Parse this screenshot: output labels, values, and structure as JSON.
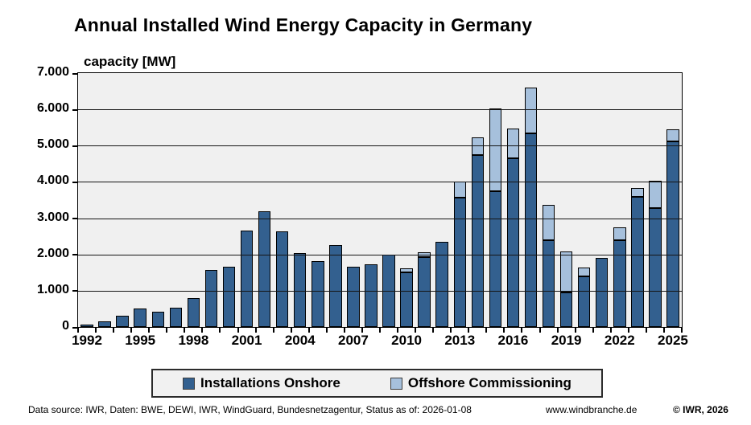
{
  "title": "Annual Installed Wind Energy Capacity in Germany",
  "axis_title": "capacity [MW]",
  "colors": {
    "onshore": "#33608f",
    "offshore": "#a6c0dc",
    "plot_background": "#f0f0f0",
    "gridline": "#151515",
    "bar_border": "#000000"
  },
  "legend": {
    "onshore_label": "Installations Onshore",
    "offshore_label": "Offshore Commissioning"
  },
  "footer": {
    "source": "Data source: IWR, Daten: BWE, DEWI, IWR, WindGuard, Bundesnetzagentur, Status as of: 2026-01-08",
    "website": "www.windbranche.de",
    "copyright": "© IWR, 2026"
  },
  "chart_data": {
    "type": "bar",
    "stacked": true,
    "title": "Annual Installed Wind Energy Capacity in Germany",
    "ylabel": "capacity [MW]",
    "xlabel": "",
    "ylim": [
      0,
      7000
    ],
    "ytick_step": 1000,
    "ytick_labels": [
      "0",
      "1.000",
      "2.000",
      "3.000",
      "4.000",
      "5.000",
      "6.000",
      "7.000"
    ],
    "grid": "horizontal gridlines drawn over bars",
    "legend_position": "bottom",
    "x": [
      1992,
      1993,
      1994,
      1995,
      1996,
      1997,
      1998,
      1999,
      2000,
      2001,
      2002,
      2003,
      2004,
      2005,
      2006,
      2007,
      2008,
      2009,
      2010,
      2011,
      2012,
      2013,
      2014,
      2015,
      2016,
      2017,
      2018,
      2019,
      2020,
      2021,
      2022,
      2023,
      2024,
      2025
    ],
    "x_tick_labels": [
      "1992",
      "1995",
      "1998",
      "2001",
      "2004",
      "2007",
      "2010",
      "2013",
      "2016",
      "2019",
      "2022",
      "2025"
    ],
    "series": [
      {
        "name": "Installations Onshore",
        "color": "#33608f",
        "values": [
          75,
          155,
          310,
          505,
          425,
          535,
          795,
          1570,
          1665,
          2660,
          3200,
          2645,
          2040,
          1810,
          2250,
          1665,
          1730,
          1990,
          1500,
          1920,
          2340,
          3570,
          4740,
          3740,
          4650,
          5330,
          2390,
          960,
          1390,
          1900,
          2390,
          3590,
          3280,
          5120
        ]
      },
      {
        "name": "Offshore Commissioning",
        "color": "#a6c0dc",
        "values": [
          0,
          0,
          0,
          0,
          0,
          0,
          0,
          0,
          0,
          0,
          0,
          0,
          0,
          0,
          0,
          0,
          0,
          0,
          110,
          130,
          0,
          440,
          490,
          2280,
          820,
          1280,
          970,
          1130,
          250,
          0,
          360,
          240,
          750,
          330
        ]
      }
    ]
  }
}
